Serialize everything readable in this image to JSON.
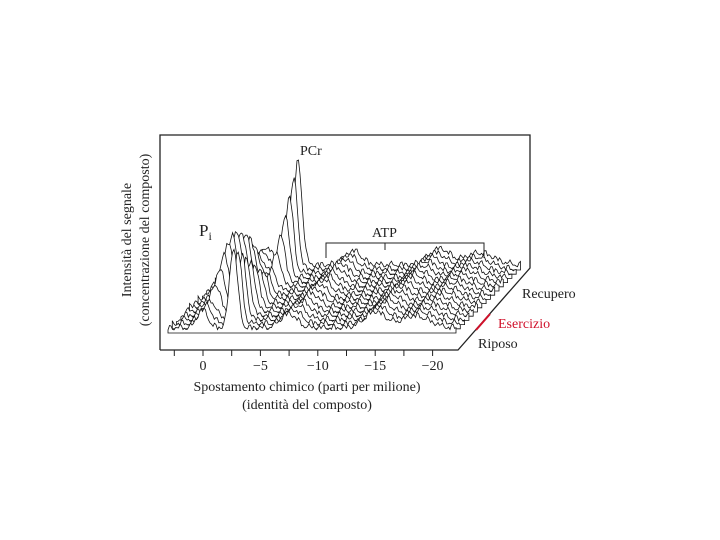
{
  "y_axis_label": {
    "line1": "Intensità del segnale",
    "line2": "(concentrazione del composto)"
  },
  "peaks": {
    "pi": "P",
    "pi_sub": "i",
    "pcr": "PCr",
    "atp": "ATP"
  },
  "x_axis": {
    "ticks": [
      "0",
      "−5",
      "−10",
      "−15",
      "−20"
    ],
    "label_line1": "Spostamento chimico (parti per milione)",
    "label_line2": "(identità del composto)"
  },
  "series_labels": {
    "recupero": "Recupero",
    "esercizio": "Esercizio",
    "riposo": "Riposo"
  }
}
